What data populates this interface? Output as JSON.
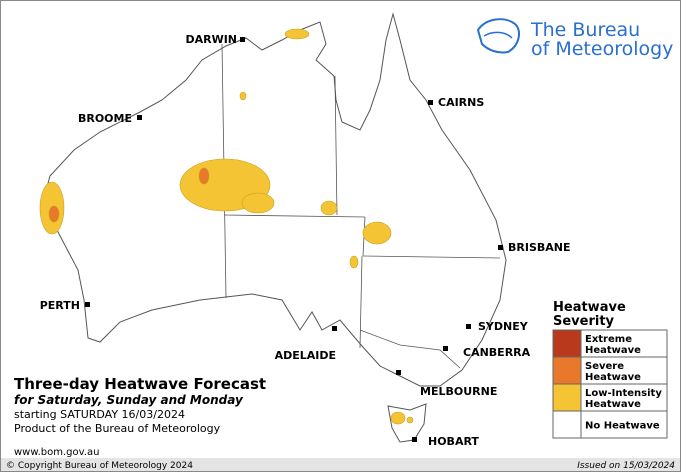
{
  "logo": {
    "line1": "The Bureau",
    "line2": "of Meteorology"
  },
  "cities": [
    "DARWIN",
    "CAIRNS",
    "BROOME",
    "BRISBANE",
    "PERTH",
    "SYDNEY",
    "CANBERRA",
    "ADELAIDE",
    "MELBOURNE",
    "HOBART"
  ],
  "title": "Three-day Heatwave Forecast",
  "subtitle": "for Saturday, Sunday and Monday",
  "starting": "starting SATURDAY 16/03/2024",
  "product": "Product of the Bureau of Meteorology",
  "website": "www.bom.gov.au",
  "copyright": "© Copyright Bureau of Meteorology 2024",
  "issued": "Issued on 15/03/2024",
  "legend": {
    "title": [
      "Heatwave",
      "Severity"
    ],
    "items": [
      {
        "label": [
          "Extreme",
          "Heatwave"
        ],
        "color": "#b8391b"
      },
      {
        "label": [
          "Severe",
          "Heatwave"
        ],
        "color": "#e8792a"
      },
      {
        "label": [
          "Low-Intensity",
          "Heatwave"
        ],
        "color": "#f5c434"
      },
      {
        "label": [
          "No Heatwave"
        ],
        "color": "#ffffff"
      }
    ]
  }
}
